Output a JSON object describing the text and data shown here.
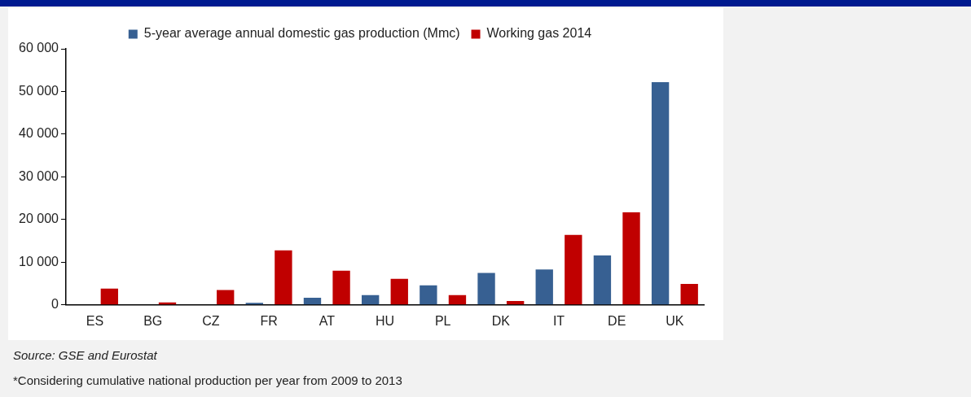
{
  "chart_data": {
    "type": "bar",
    "categories": [
      "ES",
      "BG",
      "CZ",
      "FR",
      "AT",
      "HU",
      "PL",
      "DK",
      "IT",
      "DE",
      "UK"
    ],
    "series": [
      {
        "name": "5-year average annual domestic gas production (Mmc)",
        "color": "#376092",
        "values": [
          0,
          null,
          100,
          500,
          1700,
          2300,
          4600,
          7500,
          8300,
          11600,
          52200
        ]
      },
      {
        "name": "Working gas 2014",
        "color": "#c00000",
        "values": [
          3800,
          600,
          3500,
          12800,
          8000,
          6100,
          2300,
          900,
          16400,
          21700,
          4900
        ]
      }
    ],
    "ylim": [
      0,
      60000
    ],
    "yticks": [
      {
        "value": 0,
        "label": "0"
      },
      {
        "value": 10000,
        "label": "10 000"
      },
      {
        "value": 20000,
        "label": "20 000"
      },
      {
        "value": 30000,
        "label": "30 000"
      },
      {
        "value": 40000,
        "label": "40 000"
      },
      {
        "value": 50000,
        "label": "50 000"
      },
      {
        "value": 60000,
        "label": "60 000"
      }
    ],
    "grid": false,
    "legend": "top",
    "annotations": [
      "Source: GSE and Eurostat",
      "*Considering cumulative national production per year from 2009 to 2013"
    ]
  }
}
